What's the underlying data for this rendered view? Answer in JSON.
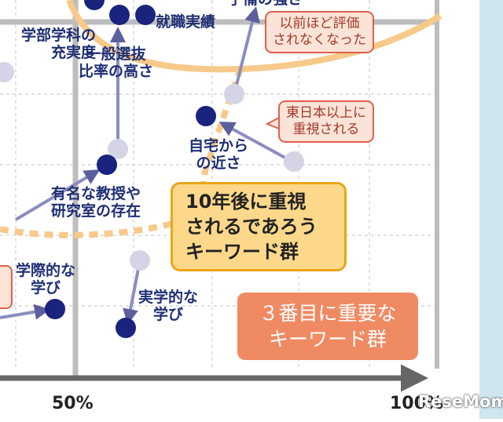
{
  "chart_data": {
    "type": "scatter",
    "x_tick_labels": [
      "50%",
      "100%"
    ],
    "grid": true,
    "points": [
      {
        "label": "就職実績",
        "kind": "primary"
      },
      {
        "label": "一般選抜\n比率の高さ",
        "kind": "primary"
      },
      {
        "label": "学部学科の\n充実度",
        "kind": "secondary"
      },
      {
        "label": "自宅から\nの近さ",
        "kind": "primary"
      },
      {
        "label": "有名な教授や\n研究室の存在",
        "kind": "primary"
      },
      {
        "label": "学際的な\n学び",
        "kind": "primary"
      },
      {
        "label": "実学的な\n学び",
        "kind": "primary"
      }
    ],
    "partial_label_top": "子備の強さ",
    "callouts": [
      {
        "text": "以前ほど評価\nされなくなった"
      },
      {
        "text": "東日本以上に\n重視される"
      }
    ],
    "boxes": [
      {
        "text": "10年後に重視\nされるであろう\nキーワード群",
        "color": "#fdd88a"
      },
      {
        "text": "３番目に重要な\nキーワード群",
        "color": "#ef8a63"
      }
    ],
    "colors": {
      "primary_dot": "#1a237e",
      "secondary_dot": "#d4d4e6",
      "arrow": "#7f83b4",
      "ring": "#f7c98a",
      "grid": "#c9c9c9",
      "axis": "#666666"
    }
  },
  "brand": "ReseMom"
}
